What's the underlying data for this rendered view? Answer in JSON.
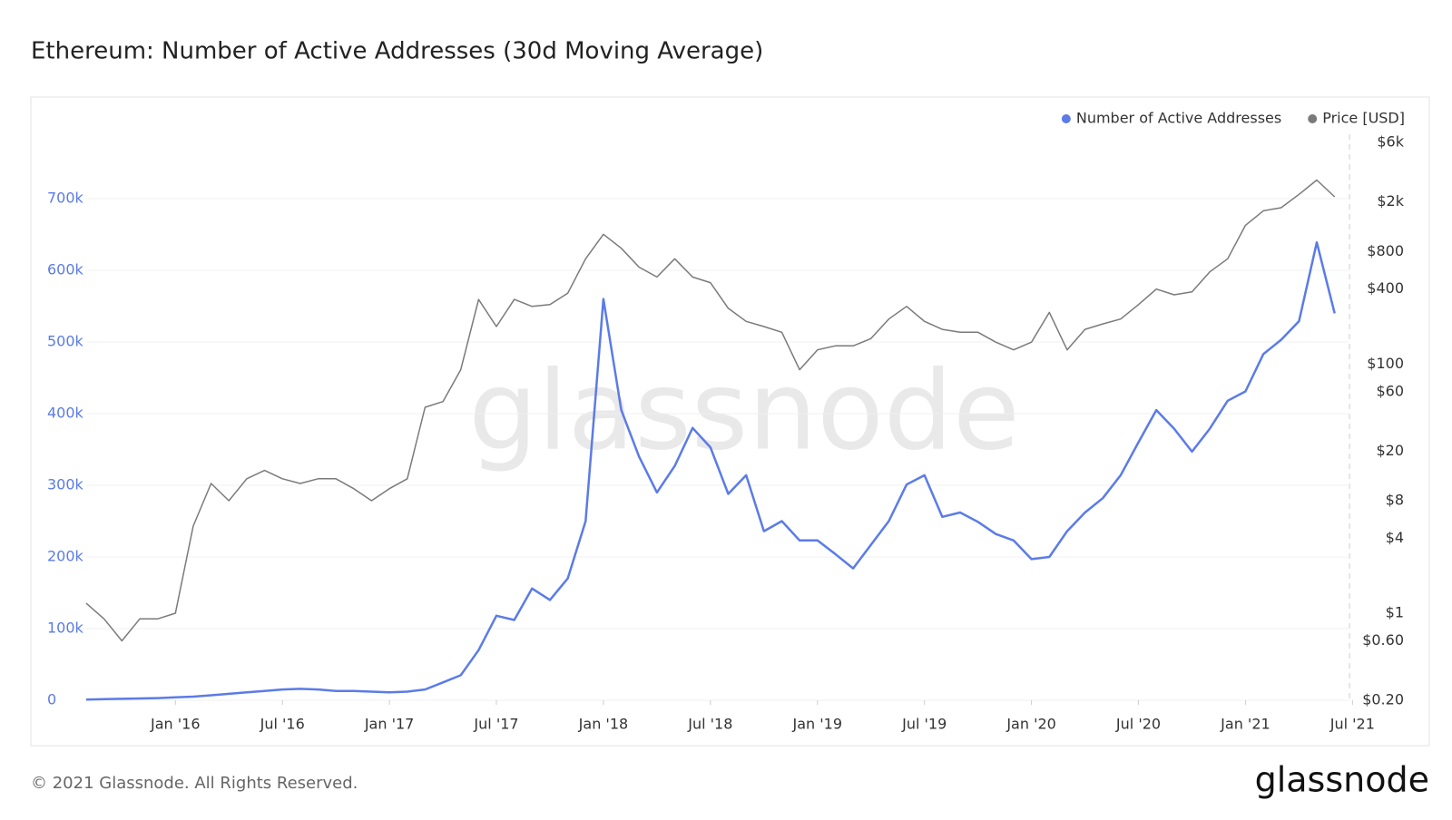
{
  "chart_data": {
    "type": "line",
    "title": "Ethereum: Number of Active Addresses (30d Moving Average)",
    "watermark": "glassnode",
    "footer": "© 2021 Glassnode. All Rights Reserved.",
    "logo": "glassnode",
    "legend": "top-right",
    "grid": true,
    "y2log": true,
    "x": [
      "2015-08",
      "2015-09",
      "2015-10",
      "2015-11",
      "2015-12",
      "2016-01",
      "2016-02",
      "2016-03",
      "2016-04",
      "2016-05",
      "2016-06",
      "2016-07",
      "2016-08",
      "2016-09",
      "2016-10",
      "2016-11",
      "2016-12",
      "2017-01",
      "2017-02",
      "2017-03",
      "2017-04",
      "2017-05",
      "2017-06",
      "2017-07",
      "2017-08",
      "2017-09",
      "2017-10",
      "2017-11",
      "2017-12",
      "2018-01",
      "2018-02",
      "2018-03",
      "2018-04",
      "2018-05",
      "2018-06",
      "2018-07",
      "2018-08",
      "2018-09",
      "2018-10",
      "2018-11",
      "2018-12",
      "2019-01",
      "2019-02",
      "2019-03",
      "2019-04",
      "2019-05",
      "2019-06",
      "2019-07",
      "2019-08",
      "2019-09",
      "2019-10",
      "2019-11",
      "2019-12",
      "2020-01",
      "2020-02",
      "2020-03",
      "2020-04",
      "2020-05",
      "2020-06",
      "2020-07",
      "2020-08",
      "2020-09",
      "2020-10",
      "2020-11",
      "2020-12",
      "2021-01",
      "2021-02",
      "2021-03",
      "2021-04",
      "2021-05",
      "2021-06"
    ],
    "xlim": [
      "2015-08",
      "2021-08"
    ],
    "xticks": [
      {
        "value": "2016-01",
        "label": "Jan '16"
      },
      {
        "value": "2016-07",
        "label": "Jul '16"
      },
      {
        "value": "2017-01",
        "label": "Jan '17"
      },
      {
        "value": "2017-07",
        "label": "Jul '17"
      },
      {
        "value": "2018-01",
        "label": "Jan '18"
      },
      {
        "value": "2018-07",
        "label": "Jul '18"
      },
      {
        "value": "2019-01",
        "label": "Jan '19"
      },
      {
        "value": "2019-07",
        "label": "Jul '19"
      },
      {
        "value": "2020-01",
        "label": "Jan '20"
      },
      {
        "value": "2020-07",
        "label": "Jul '20"
      },
      {
        "value": "2021-01",
        "label": "Jan '21"
      },
      {
        "value": "2021-07",
        "label": "Jul '21"
      }
    ],
    "ylim": [
      0,
      800000
    ],
    "yticks": [
      0,
      {
        "value": 100000,
        "label": "100k"
      },
      {
        "value": 200000,
        "label": "200k"
      },
      {
        "value": 300000,
        "label": "300k"
      },
      {
        "value": 400000,
        "label": "400k"
      },
      {
        "value": 500000,
        "label": "500k"
      },
      {
        "value": 600000,
        "label": "600k"
      },
      {
        "value": 700000,
        "label": "700k"
      }
    ],
    "y2lim": [
      0.2,
      8000
    ],
    "y2ticks": [
      {
        "value": 0.2,
        "label": "$0.20"
      },
      {
        "value": 0.6,
        "label": "$0.60"
      },
      {
        "value": 1,
        "label": "$1"
      },
      {
        "value": 4,
        "label": "$4"
      },
      {
        "value": 8,
        "label": "$8"
      },
      {
        "value": 20,
        "label": "$20"
      },
      {
        "value": 60,
        "label": "$60"
      },
      {
        "value": 100,
        "label": "$100"
      },
      {
        "value": 400,
        "label": "$400"
      },
      {
        "value": 800,
        "label": "$800"
      },
      {
        "value": 2000,
        "label": "$2k"
      },
      {
        "value": 6000,
        "label": "$6k"
      }
    ],
    "series": [
      {
        "name": "Number of Active Addresses",
        "color": "#5b7be8",
        "values": [
          1000,
          1500,
          2000,
          2500,
          3000,
          4000,
          5000,
          7000,
          9000,
          11000,
          13000,
          15000,
          16000,
          15000,
          13000,
          13000,
          12000,
          11000,
          12000,
          15000,
          25000,
          35000,
          70000,
          118000,
          112000,
          156000,
          140000,
          170000,
          250000,
          560000,
          405000,
          340000,
          290000,
          327000,
          380000,
          353000,
          288000,
          314000,
          236000,
          250000,
          223000,
          223000,
          204000,
          184000,
          217000,
          250000,
          301000,
          314000,
          256000,
          262000,
          249000,
          232000,
          223000,
          197000,
          200000,
          236000,
          262000,
          282000,
          314000,
          360000,
          405000,
          379000,
          347000,
          379000,
          418000,
          431000,
          483000,
          503000,
          529000,
          639000,
          540000
        ]
      },
      {
        "name": "Price [USD]",
        "color": "#7a7a7a",
        "axis": "y2",
        "values": [
          1.2,
          0.9,
          0.6,
          0.9,
          0.9,
          1.0,
          5,
          11,
          8,
          12,
          14,
          12,
          11,
          12,
          12,
          10,
          8,
          10,
          12,
          45,
          50,
          90,
          330,
          200,
          330,
          290,
          300,
          370,
          700,
          1100,
          850,
          600,
          500,
          700,
          500,
          450,
          280,
          220,
          200,
          180,
          90,
          130,
          140,
          140,
          160,
          230,
          290,
          220,
          190,
          180,
          180,
          150,
          130,
          150,
          260,
          130,
          190,
          210,
          230,
          300,
          400,
          360,
          380,
          550,
          700,
          1300,
          1700,
          1800,
          2300,
          3000,
          2200
        ]
      }
    ]
  }
}
